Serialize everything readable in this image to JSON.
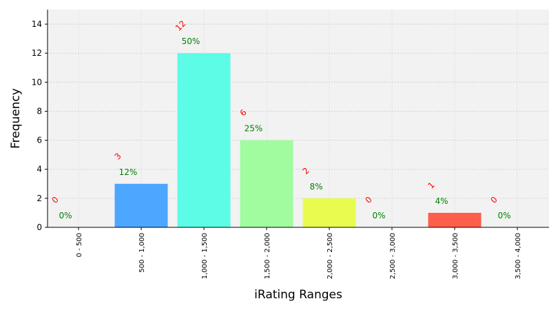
{
  "chart_data": {
    "type": "bar",
    "categories": [
      "0 - 500",
      "500 - 1,000",
      "1,000 - 1,500",
      "1,500 - 2,000",
      "2,000 - 2,500",
      "2,500 - 3,000",
      "3,000 - 3,500",
      "3,500 - 4,000"
    ],
    "values": [
      0,
      3,
      12,
      6,
      2,
      0,
      1,
      0
    ],
    "count_labels": [
      "0",
      "3",
      "12",
      "6",
      "2",
      "0",
      "1",
      "0"
    ],
    "percent_labels": [
      "0%",
      "12%",
      "50%",
      "25%",
      "8%",
      "0%",
      "4%",
      "0%"
    ],
    "bar_colors": [
      "#4da6ff",
      "#4da6ff",
      "#5cfce6",
      "#a0fc9e",
      "#e8fc50",
      "#ffb04d",
      "#ff5e4a",
      "#ff5e4a"
    ],
    "xlabel": "iRating Ranges",
    "ylabel": "Frequency",
    "ylim": [
      0,
      15
    ],
    "yticks": [
      0,
      2,
      4,
      6,
      8,
      10,
      12,
      14
    ],
    "grid": true,
    "plot_background": "#f2f2f2",
    "count_label_color": "#ff0000",
    "percent_label_color": "#008000"
  }
}
